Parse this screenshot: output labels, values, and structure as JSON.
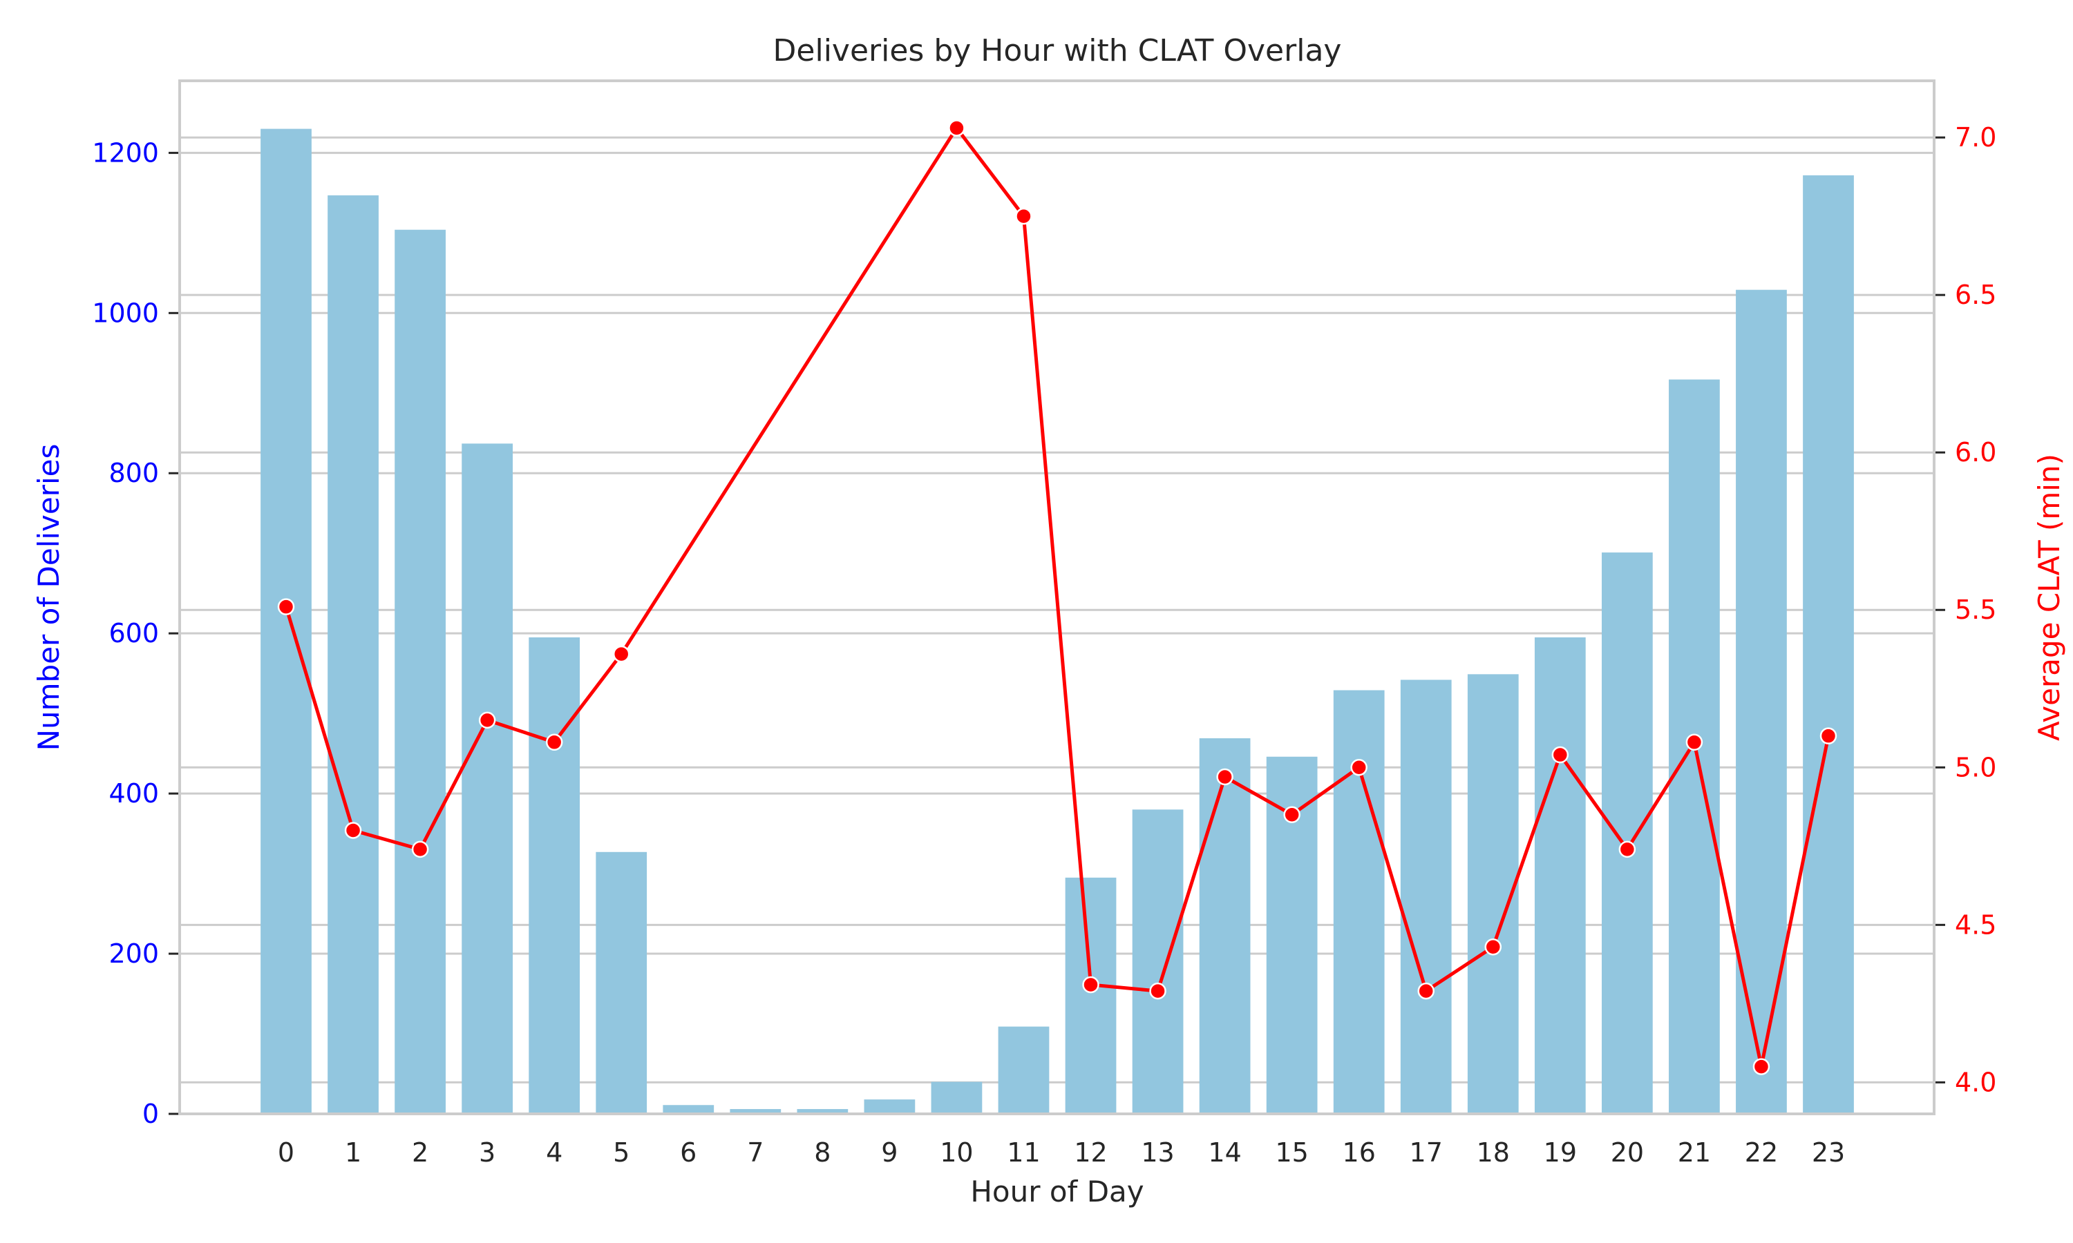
{
  "chart_data": {
    "type": "bar",
    "title": "Deliveries by Hour with CLAT Overlay",
    "xlabel": "Hour of Day",
    "ylabel": "Number of Deliveries",
    "ylabel_right": "Average CLAT (min)",
    "categories": [
      "0",
      "1",
      "2",
      "3",
      "4",
      "5",
      "6",
      "7",
      "8",
      "9",
      "10",
      "11",
      "12",
      "13",
      "14",
      "15",
      "16",
      "17",
      "18",
      "19",
      "20",
      "21",
      "22",
      "23"
    ],
    "ylim": [
      0,
      1290
    ],
    "ylim_right": [
      3.9,
      7.18
    ],
    "yticks": [
      0,
      200,
      400,
      600,
      800,
      1000,
      1200
    ],
    "yticks_right": [
      4.0,
      4.5,
      5.0,
      5.5,
      6.0,
      6.5,
      7.0
    ],
    "grid": true,
    "series": [
      {
        "name": "Number of Deliveries",
        "type": "bar",
        "axis": "left",
        "color": "#92c6df",
        "values": [
          1230,
          1147,
          1104,
          837,
          595,
          327,
          11,
          6,
          6,
          18,
          40,
          109,
          295,
          380,
          469,
          446,
          529,
          542,
          549,
          595,
          701,
          917,
          1029,
          1172
        ]
      },
      {
        "name": "Average CLAT (min)",
        "type": "line",
        "axis": "right",
        "color": "#ff0000",
        "values": [
          5.51,
          4.8,
          4.74,
          5.15,
          5.08,
          5.36,
          null,
          null,
          null,
          null,
          7.03,
          6.75,
          4.31,
          4.29,
          4.97,
          4.85,
          5.0,
          4.29,
          4.43,
          5.04,
          4.74,
          5.08,
          4.05,
          5.1
        ]
      }
    ],
    "colors": {
      "left_axis": "#0000ff",
      "right_axis": "#ff0000",
      "text": "#262626"
    }
  }
}
